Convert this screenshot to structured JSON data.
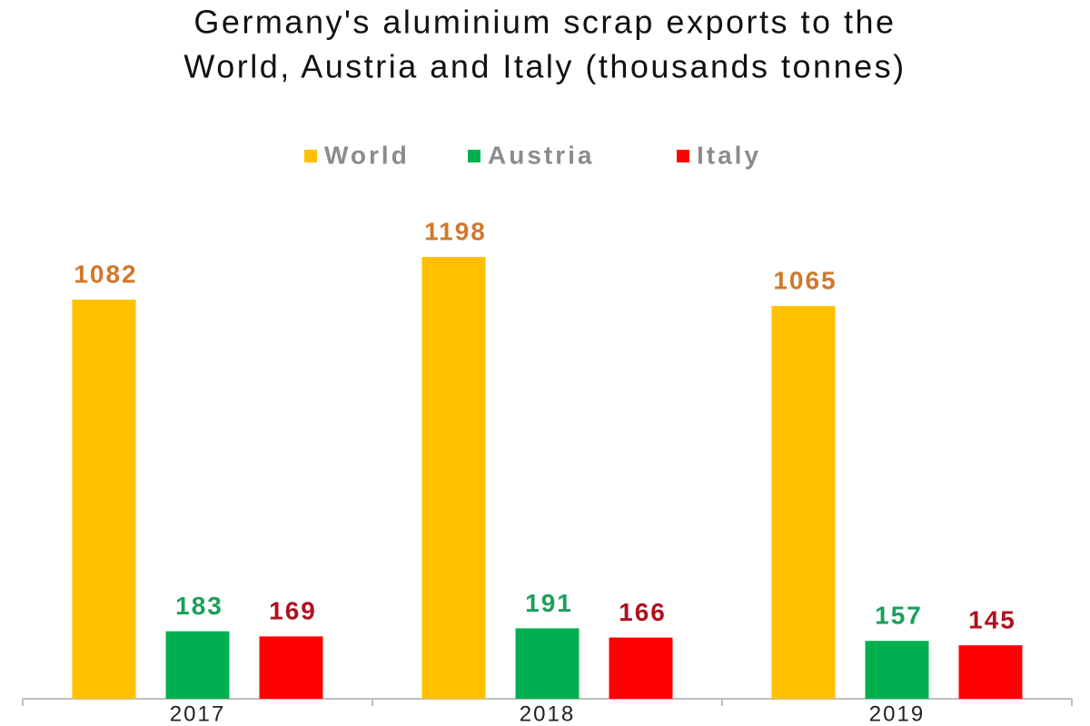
{
  "chart_data": {
    "type": "bar",
    "title": "Germany's aluminium scrap exports to the",
    "subtitle": "World, Austria and Italy (thousands tonnes)",
    "categories": [
      "2017",
      "2018",
      "2019"
    ],
    "series": [
      {
        "name": "World",
        "color": "#ffc000",
        "label_color": "#d0782a",
        "values": [
          1082,
          1198,
          1065
        ]
      },
      {
        "name": "Austria",
        "color": "#00b050",
        "label_color": "#1aa05a",
        "values": [
          183,
          191,
          157
        ]
      },
      {
        "name": "Italy",
        "color": "#ff0000",
        "label_color": "#b01020",
        "values": [
          169,
          166,
          145
        ]
      }
    ],
    "ylim": [
      0,
      1400
    ]
  }
}
